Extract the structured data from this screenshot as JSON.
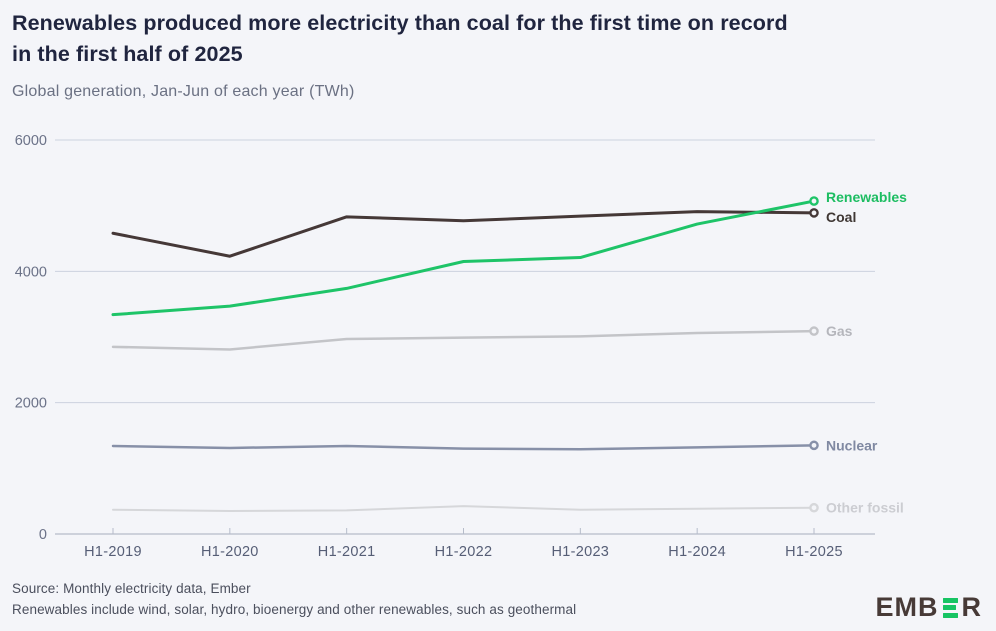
{
  "header": {
    "title_lines": [
      "Renewables produced more electricity than coal for the first time on record",
      "in the first half of 2025"
    ],
    "subtitle": "Global generation, Jan-Jun of each year (TWh)"
  },
  "chart_data": {
    "type": "line",
    "title": "Renewables produced more electricity than coal for the first time on record in the first half of 2025",
    "subtitle": "Global generation, Jan-Jun of each year (TWh)",
    "unit": "TWh",
    "categories": [
      "H1-2019",
      "H1-2020",
      "H1-2021",
      "H1-2022",
      "H1-2023",
      "H1-2024",
      "H1-2025"
    ],
    "series": [
      {
        "name": "Renewables",
        "color": "#1ec468",
        "label_color": "#1dbd62",
        "values": [
          3340,
          3470,
          3740,
          4150,
          4210,
          4720,
          5070
        ]
      },
      {
        "name": "Coal",
        "color": "#453837",
        "label_color": "#3f3734",
        "values": [
          4580,
          4230,
          4830,
          4770,
          4840,
          4910,
          4890
        ]
      },
      {
        "name": "Gas",
        "color": "#c3c4c8",
        "label_color": "#b5b6bc",
        "values": [
          2850,
          2810,
          2970,
          2990,
          3010,
          3060,
          3090
        ]
      },
      {
        "name": "Nuclear",
        "color": "#8790a8",
        "label_color": "#8089a2",
        "values": [
          1340,
          1310,
          1340,
          1300,
          1290,
          1320,
          1350
        ]
      },
      {
        "name": "Other fossil",
        "color": "#d6d7da",
        "label_color": "#cccdd2",
        "values": [
          370,
          350,
          360,
          425,
          370,
          385,
          400
        ]
      }
    ],
    "y_ticks": [
      0,
      2000,
      4000,
      6000
    ],
    "ylim": [
      0,
      6000
    ],
    "grid": true,
    "legend_position": "end-of-line-labels-right"
  },
  "footer": {
    "source_line": "Source: Monthly electricity data, Ember",
    "note_line": "Renewables include wind, solar, hydro, bioenergy and other renewables, such as geothermal",
    "logo_text_left": "EMB",
    "logo_text_right": "R",
    "logo_green_letter": "E"
  },
  "colors": {
    "background": "#f4f5f9",
    "title_text": "#20253f",
    "subtitle_text": "#6b7183",
    "gridline": "#ccd2df",
    "axis_line": "#a6adbd",
    "tick": "#b6bcca",
    "y_tick_label": "#6b7288",
    "x_tick_label": "#565e76",
    "footer_text": "#4b4f5d",
    "logo_dark": "#473a37",
    "logo_green": "#17c463"
  }
}
